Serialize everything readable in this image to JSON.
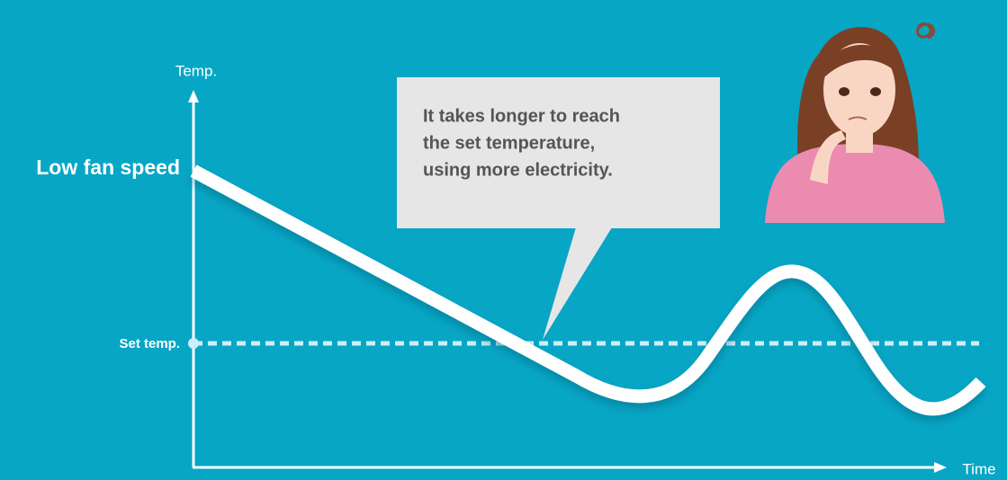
{
  "axis_y_label": "Temp.",
  "axis_x_label": "Time",
  "curve_label": "Low fan speed",
  "set_temp_label": "Set temp.",
  "callout": {
    "lines": [
      "It takes longer to reach",
      "the set temperature,",
      "using more electricity."
    ]
  }
}
